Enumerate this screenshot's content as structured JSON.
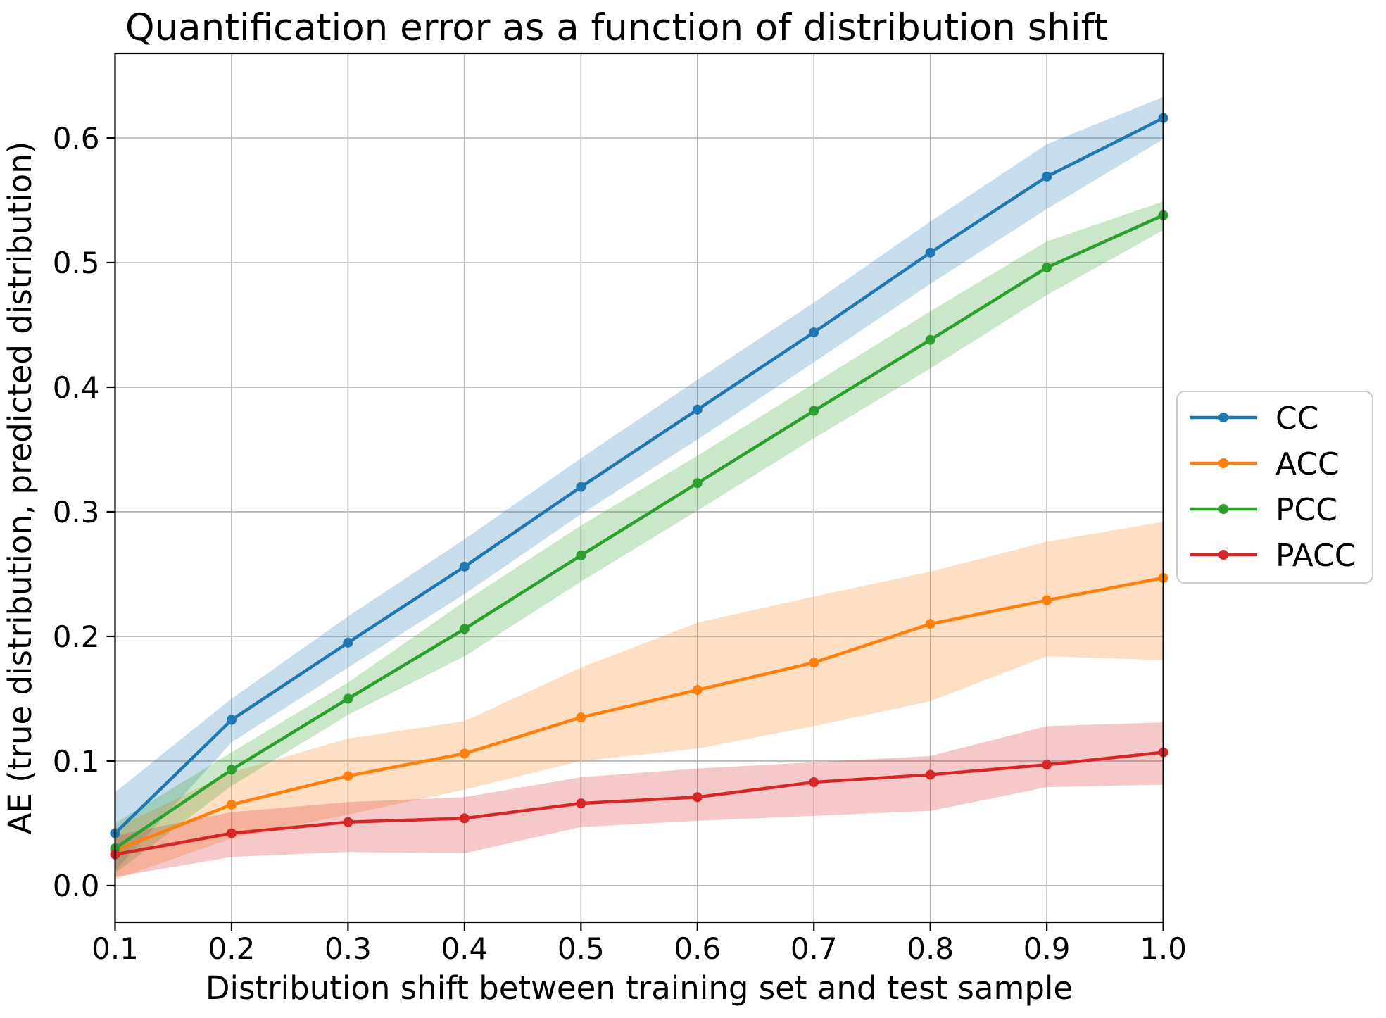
{
  "chart_data": {
    "type": "line",
    "title": "Quantification error as a function of distribution shift",
    "xlabel": "Distribution shift between training set and test sample",
    "ylabel": "AE (true distribution, predicted distribution)",
    "grid": true,
    "grid_color": "#b0b0b0",
    "spine_color": "#000000",
    "band_alpha": 0.25,
    "legend_position": "outside right",
    "xlim": [
      0.1,
      1.0
    ],
    "ylim": [
      -0.0294,
      0.6678
    ],
    "x": [
      0.1,
      0.2,
      0.3,
      0.4,
      0.5,
      0.6,
      0.7,
      0.8,
      0.9,
      1.0
    ],
    "x_tick_labels": [
      "0.1",
      "0.2",
      "0.3",
      "0.4",
      "0.5",
      "0.6",
      "0.7",
      "0.8",
      "0.9",
      "1.0"
    ],
    "y_ticks": [
      0.0,
      0.1,
      0.2,
      0.3,
      0.4,
      0.5,
      0.6
    ],
    "y_tick_labels": [
      "0.0",
      "0.1",
      "0.2",
      "0.3",
      "0.4",
      "0.5",
      "0.6"
    ],
    "series": [
      {
        "name": "CC",
        "color": "#1f77b4",
        "values": [
          0.042,
          0.133,
          0.195,
          0.256,
          0.32,
          0.382,
          0.444,
          0.508,
          0.569,
          0.616
        ],
        "band_upper": [
          0.075,
          0.15,
          0.216,
          0.278,
          0.343,
          0.406,
          0.468,
          0.533,
          0.595,
          0.633
        ],
        "band_lower": [
          0.012,
          0.115,
          0.175,
          0.234,
          0.298,
          0.358,
          0.42,
          0.483,
          0.543,
          0.599
        ]
      },
      {
        "name": "ACC",
        "color": "#ff7f0e",
        "values": [
          0.028,
          0.065,
          0.088,
          0.106,
          0.135,
          0.157,
          0.179,
          0.21,
          0.229,
          0.247
        ],
        "band_upper": [
          0.046,
          0.091,
          0.118,
          0.132,
          0.175,
          0.211,
          0.232,
          0.252,
          0.276,
          0.292
        ],
        "band_lower": [
          0.005,
          0.038,
          0.057,
          0.077,
          0.1,
          0.11,
          0.128,
          0.148,
          0.184,
          0.181
        ]
      },
      {
        "name": "PCC",
        "color": "#2ca02c",
        "values": [
          0.03,
          0.093,
          0.15,
          0.206,
          0.265,
          0.323,
          0.381,
          0.438,
          0.496,
          0.538
        ],
        "band_upper": [
          0.05,
          0.107,
          0.163,
          0.228,
          0.289,
          0.345,
          0.403,
          0.461,
          0.517,
          0.549
        ],
        "band_lower": [
          0.01,
          0.08,
          0.137,
          0.184,
          0.244,
          0.301,
          0.359,
          0.415,
          0.474,
          0.526
        ]
      },
      {
        "name": "PACC",
        "color": "#d62728",
        "values": [
          0.025,
          0.042,
          0.051,
          0.054,
          0.066,
          0.071,
          0.083,
          0.089,
          0.097,
          0.107
        ],
        "band_upper": [
          0.04,
          0.059,
          0.067,
          0.071,
          0.087,
          0.094,
          0.099,
          0.104,
          0.128,
          0.131
        ],
        "band_lower": [
          0.007,
          0.023,
          0.027,
          0.026,
          0.047,
          0.052,
          0.056,
          0.06,
          0.079,
          0.081
        ]
      }
    ]
  }
}
